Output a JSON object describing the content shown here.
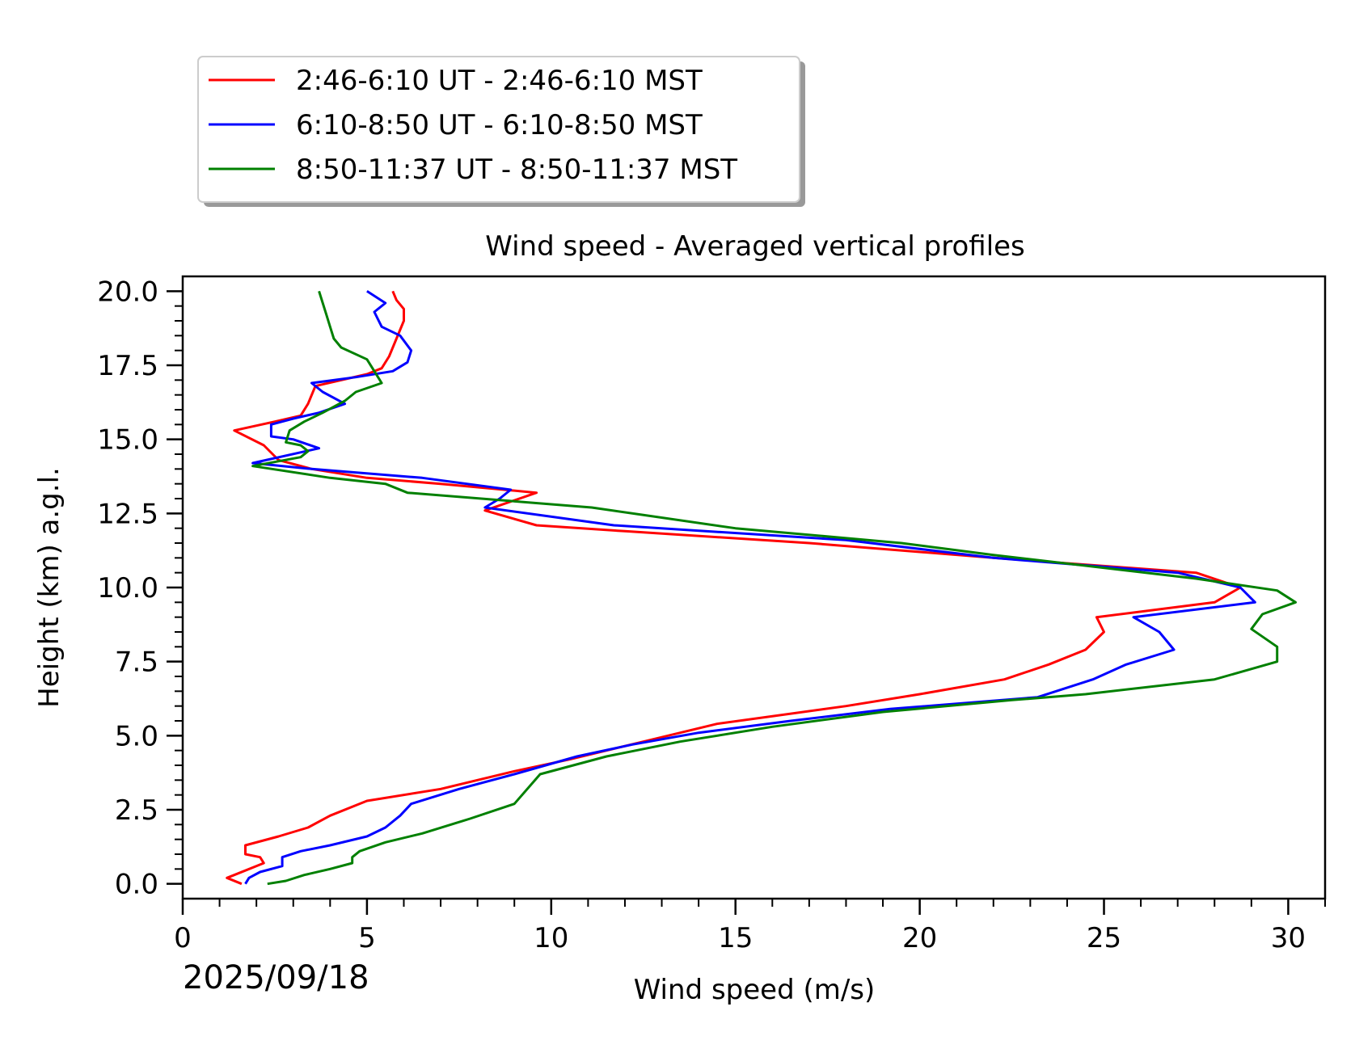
{
  "chart_data": {
    "type": "line",
    "title": "Wind speed - Averaged vertical profiles",
    "xlabel": "Wind speed (m/s)",
    "ylabel": "Height (km) a.g.l.",
    "date_label": "2025/09/18",
    "xlim": [
      0,
      31
    ],
    "ylim": [
      -0.5,
      20.5
    ],
    "x_ticks": [
      0,
      5,
      10,
      15,
      20,
      25,
      30
    ],
    "y_ticks": [
      0.0,
      2.5,
      5.0,
      7.5,
      10.0,
      12.5,
      15.0,
      17.5,
      20.0
    ],
    "x_tick_labels": [
      "0",
      "5",
      "10",
      "15",
      "20",
      "25",
      "30"
    ],
    "y_tick_labels": [
      "0.0",
      "2.5",
      "5.0",
      "7.5",
      "10.0",
      "12.5",
      "15.0",
      "17.5",
      "20.0"
    ],
    "grid": false,
    "legend_position": "above plot, top-left",
    "series": [
      {
        "name": "2:46-6:10 UT - 2:46-6:10 MST",
        "color": "#ff0000",
        "points": [
          [
            1.6,
            0.0
          ],
          [
            1.2,
            0.2
          ],
          [
            1.4,
            0.3
          ],
          [
            2.2,
            0.7
          ],
          [
            2.1,
            0.9
          ],
          [
            1.7,
            1.0
          ],
          [
            1.7,
            1.3
          ],
          [
            2.6,
            1.6
          ],
          [
            3.4,
            1.9
          ],
          [
            4.0,
            2.3
          ],
          [
            5.0,
            2.8
          ],
          [
            7.0,
            3.2
          ],
          [
            9.0,
            3.8
          ],
          [
            10.5,
            4.2
          ],
          [
            12.5,
            4.8
          ],
          [
            14.5,
            5.4
          ],
          [
            18.0,
            6.0
          ],
          [
            20.0,
            6.4
          ],
          [
            22.3,
            6.9
          ],
          [
            23.5,
            7.4
          ],
          [
            24.5,
            7.9
          ],
          [
            25.0,
            8.5
          ],
          [
            24.8,
            9.0
          ],
          [
            28.0,
            9.5
          ],
          [
            28.7,
            10.0
          ],
          [
            27.5,
            10.5
          ],
          [
            22.0,
            11.0
          ],
          [
            17.0,
            11.5
          ],
          [
            12.0,
            11.9
          ],
          [
            9.6,
            12.1
          ],
          [
            8.2,
            12.6
          ],
          [
            9.6,
            13.2
          ],
          [
            7.0,
            13.5
          ],
          [
            5.0,
            13.7
          ],
          [
            3.5,
            14.0
          ],
          [
            2.6,
            14.3
          ],
          [
            2.2,
            14.8
          ],
          [
            1.4,
            15.3
          ],
          [
            2.5,
            15.6
          ],
          [
            3.2,
            15.8
          ],
          [
            3.4,
            16.2
          ],
          [
            3.6,
            16.8
          ],
          [
            5.0,
            17.2
          ],
          [
            5.4,
            17.4
          ],
          [
            5.6,
            17.8
          ],
          [
            5.8,
            18.4
          ],
          [
            6.0,
            19.0
          ],
          [
            6.0,
            19.4
          ],
          [
            5.8,
            19.7
          ],
          [
            5.7,
            20.0
          ]
        ]
      },
      {
        "name": "6:10-8:50 UT - 6:10-8:50 MST",
        "color": "#0000ff",
        "points": [
          [
            1.7,
            0.0
          ],
          [
            1.8,
            0.2
          ],
          [
            2.1,
            0.4
          ],
          [
            2.7,
            0.6
          ],
          [
            2.7,
            0.9
          ],
          [
            3.2,
            1.1
          ],
          [
            4.0,
            1.3
          ],
          [
            5.0,
            1.6
          ],
          [
            5.5,
            1.9
          ],
          [
            5.9,
            2.3
          ],
          [
            6.2,
            2.7
          ],
          [
            7.5,
            3.2
          ],
          [
            9.0,
            3.7
          ],
          [
            10.7,
            4.3
          ],
          [
            12.2,
            4.7
          ],
          [
            14.0,
            5.1
          ],
          [
            16.5,
            5.5
          ],
          [
            19.2,
            5.9
          ],
          [
            23.2,
            6.3
          ],
          [
            24.7,
            6.9
          ],
          [
            25.6,
            7.4
          ],
          [
            26.9,
            7.9
          ],
          [
            26.5,
            8.5
          ],
          [
            25.8,
            9.0
          ],
          [
            29.1,
            9.5
          ],
          [
            28.7,
            10.0
          ],
          [
            27.0,
            10.5
          ],
          [
            22.0,
            11.0
          ],
          [
            18.0,
            11.6
          ],
          [
            11.7,
            12.1
          ],
          [
            8.2,
            12.7
          ],
          [
            8.6,
            13.0
          ],
          [
            8.9,
            13.3
          ],
          [
            6.5,
            13.7
          ],
          [
            3.5,
            14.0
          ],
          [
            1.9,
            14.2
          ],
          [
            3.7,
            14.7
          ],
          [
            3.0,
            15.0
          ],
          [
            2.4,
            15.1
          ],
          [
            2.4,
            15.5
          ],
          [
            3.0,
            15.7
          ],
          [
            3.7,
            15.9
          ],
          [
            4.4,
            16.2
          ],
          [
            3.8,
            16.6
          ],
          [
            3.5,
            16.9
          ],
          [
            4.7,
            17.1
          ],
          [
            5.7,
            17.3
          ],
          [
            6.1,
            17.6
          ],
          [
            6.2,
            18.0
          ],
          [
            5.9,
            18.5
          ],
          [
            5.4,
            18.8
          ],
          [
            5.2,
            19.3
          ],
          [
            5.5,
            19.6
          ],
          [
            5.0,
            20.0
          ]
        ]
      },
      {
        "name": "8:50-11:37 UT - 8:50-11:37 MST",
        "color": "#008000",
        "points": [
          [
            2.3,
            0.0
          ],
          [
            2.8,
            0.1
          ],
          [
            3.3,
            0.3
          ],
          [
            4.0,
            0.5
          ],
          [
            4.6,
            0.7
          ],
          [
            4.6,
            0.9
          ],
          [
            4.8,
            1.1
          ],
          [
            5.5,
            1.4
          ],
          [
            6.5,
            1.7
          ],
          [
            7.8,
            2.2
          ],
          [
            9.0,
            2.7
          ],
          [
            9.7,
            3.7
          ],
          [
            11.5,
            4.3
          ],
          [
            13.5,
            4.8
          ],
          [
            16.0,
            5.3
          ],
          [
            19.0,
            5.8
          ],
          [
            22.5,
            6.2
          ],
          [
            24.5,
            6.4
          ],
          [
            28.0,
            6.9
          ],
          [
            29.7,
            7.5
          ],
          [
            29.7,
            8.0
          ],
          [
            29.0,
            8.6
          ],
          [
            29.3,
            9.1
          ],
          [
            30.2,
            9.5
          ],
          [
            29.7,
            9.9
          ],
          [
            27.5,
            10.3
          ],
          [
            22.0,
            11.1
          ],
          [
            19.5,
            11.5
          ],
          [
            15.0,
            12.0
          ],
          [
            11.1,
            12.7
          ],
          [
            6.1,
            13.2
          ],
          [
            5.5,
            13.5
          ],
          [
            4.0,
            13.7
          ],
          [
            1.9,
            14.1
          ],
          [
            3.2,
            14.4
          ],
          [
            3.4,
            14.6
          ],
          [
            3.2,
            14.8
          ],
          [
            2.8,
            14.9
          ],
          [
            2.9,
            15.3
          ],
          [
            3.3,
            15.6
          ],
          [
            3.8,
            15.9
          ],
          [
            4.4,
            16.3
          ],
          [
            4.7,
            16.6
          ],
          [
            5.4,
            16.9
          ],
          [
            5.2,
            17.3
          ],
          [
            5.0,
            17.7
          ],
          [
            4.3,
            18.1
          ],
          [
            4.1,
            18.4
          ],
          [
            4.0,
            18.8
          ],
          [
            3.9,
            19.2
          ],
          [
            3.8,
            19.6
          ],
          [
            3.7,
            20.0
          ]
        ]
      }
    ]
  }
}
